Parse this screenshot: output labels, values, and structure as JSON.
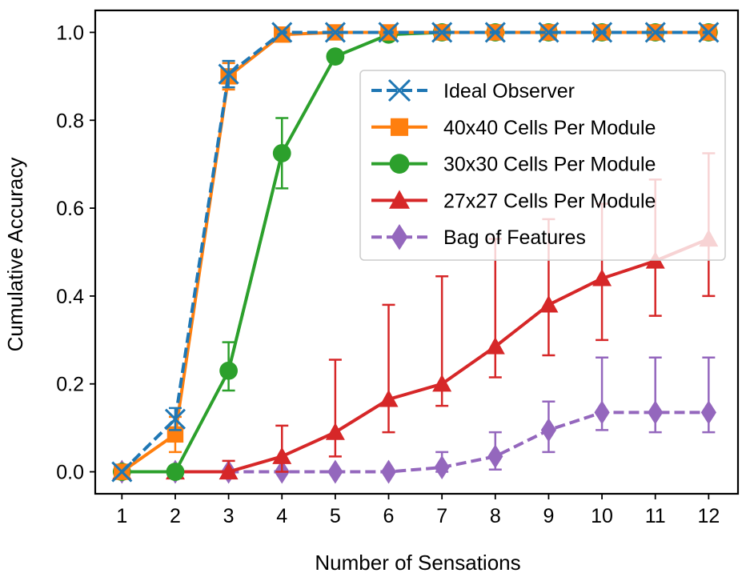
{
  "chart_data": {
    "type": "line",
    "title": "",
    "xlabel": "Number of Sensations",
    "ylabel": "Cumulative Accuracy",
    "x": [
      1,
      2,
      3,
      4,
      5,
      6,
      7,
      8,
      9,
      10,
      11,
      12
    ],
    "x_tick_labels": [
      "1",
      "2",
      "3",
      "4",
      "5",
      "6",
      "7",
      "8",
      "9",
      "10",
      "11",
      "12"
    ],
    "y_ticks": [
      0.0,
      0.2,
      0.4,
      0.6,
      0.8,
      1.0
    ],
    "y_tick_labels": [
      "0.0",
      "0.2",
      "0.4",
      "0.6",
      "0.8",
      "1.0"
    ],
    "xlim": [
      0.5,
      12.55
    ],
    "ylim": [
      -0.05,
      1.05
    ],
    "grid": false,
    "legend_position": "right, upper-middle",
    "series": [
      {
        "name": "Ideal Observer",
        "color": "#1f77b4",
        "marker": "x",
        "line_style": "dashed",
        "values": [
          0.0,
          0.12,
          0.905,
          1.0,
          1.0,
          1.0,
          1.0,
          1.0,
          1.0,
          1.0,
          1.0,
          1.0
        ],
        "err_low": [
          0.0,
          0.095,
          0.875,
          1.0,
          1.0,
          1.0,
          1.0,
          1.0,
          1.0,
          1.0,
          1.0,
          1.0
        ],
        "err_high": [
          0.0,
          0.145,
          0.935,
          1.0,
          1.0,
          1.0,
          1.0,
          1.0,
          1.0,
          1.0,
          1.0,
          1.0
        ]
      },
      {
        "name": "40x40 Cells Per Module",
        "color": "#ff7f0e",
        "marker": "square",
        "line_style": "solid",
        "values": [
          0.0,
          0.085,
          0.9,
          0.995,
          1.0,
          1.0,
          1.0,
          1.0,
          1.0,
          1.0,
          1.0,
          1.0
        ],
        "err_low": [
          0.0,
          0.045,
          0.87,
          0.99,
          1.0,
          1.0,
          1.0,
          1.0,
          1.0,
          1.0,
          1.0,
          1.0
        ],
        "err_high": [
          0.0,
          0.125,
          0.93,
          1.0,
          1.0,
          1.0,
          1.0,
          1.0,
          1.0,
          1.0,
          1.0,
          1.0
        ]
      },
      {
        "name": "30x30 Cells Per Module",
        "color": "#2ca02c",
        "marker": "circle",
        "line_style": "solid",
        "values": [
          0.0,
          0.0,
          0.23,
          0.725,
          0.945,
          0.995,
          1.0,
          1.0,
          1.0,
          1.0,
          1.0,
          1.0
        ],
        "err_low": [
          0.0,
          0.0,
          0.185,
          0.645,
          0.945,
          0.99,
          1.0,
          1.0,
          1.0,
          1.0,
          1.0,
          1.0
        ],
        "err_high": [
          0.0,
          0.0,
          0.295,
          0.805,
          0.95,
          1.0,
          1.0,
          1.0,
          1.0,
          1.0,
          1.0,
          1.0
        ]
      },
      {
        "name": "27x27 Cells Per Module",
        "color": "#d62728",
        "marker": "triangle",
        "line_style": "solid",
        "values": [
          0.0,
          0.0,
          0.0,
          0.035,
          0.09,
          0.165,
          0.2,
          0.285,
          0.38,
          0.44,
          0.48,
          0.53
        ],
        "err_low": [
          0.0,
          0.0,
          0.0,
          0.0,
          0.035,
          0.09,
          0.15,
          0.215,
          0.265,
          0.3,
          0.355,
          0.4
        ],
        "err_high": [
          0.0,
          0.0,
          0.025,
          0.105,
          0.255,
          0.38,
          0.445,
          0.53,
          0.575,
          0.61,
          0.665,
          0.725
        ]
      },
      {
        "name": "Bag of Features",
        "color": "#9467bd",
        "marker": "diamond",
        "line_style": "dashed",
        "values": [
          0.0,
          0.0,
          0.0,
          0.0,
          0.0,
          0.0,
          0.01,
          0.035,
          0.095,
          0.135,
          0.135,
          0.135
        ],
        "err_low": [
          0.0,
          0.0,
          0.0,
          0.0,
          0.0,
          0.0,
          0.0,
          0.005,
          0.045,
          0.095,
          0.09,
          0.09
        ],
        "err_high": [
          0.0,
          0.0,
          0.0,
          0.0,
          0.0,
          0.0,
          0.045,
          0.09,
          0.16,
          0.26,
          0.26,
          0.26
        ]
      }
    ]
  }
}
